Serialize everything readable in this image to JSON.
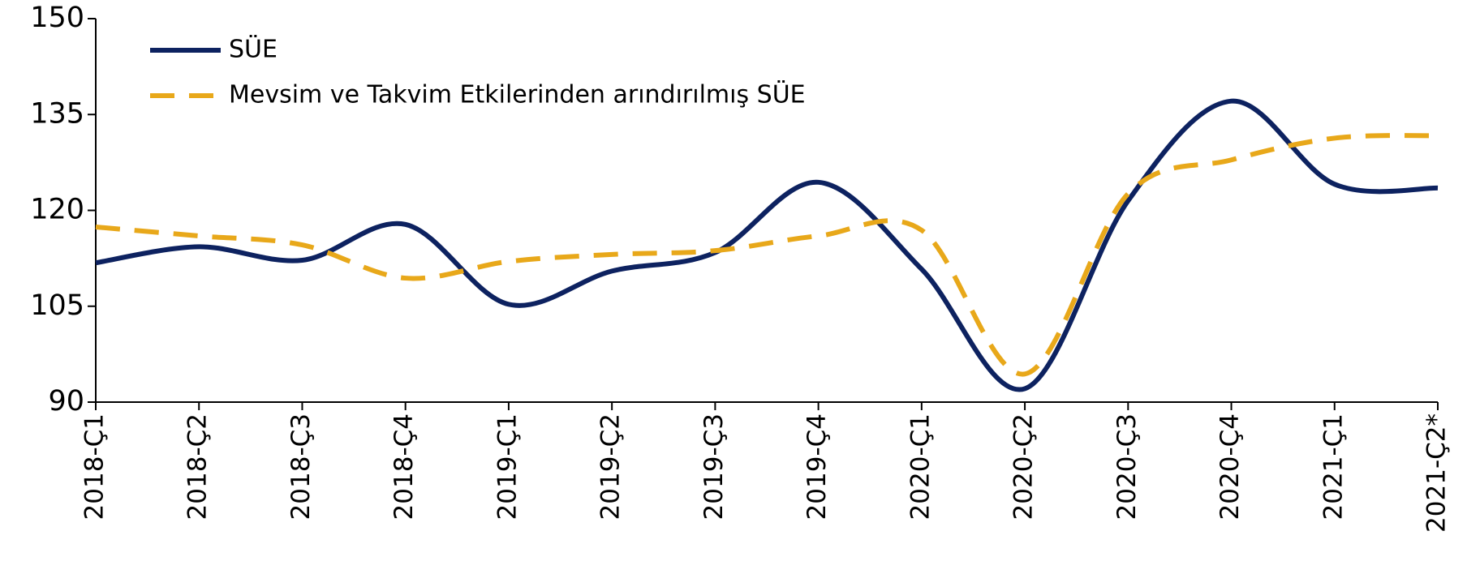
{
  "chart_data": {
    "type": "line",
    "categories": [
      "2018-Ç1",
      "2018-Ç2",
      "2018-Ç3",
      "2018-Ç4",
      "2019-Ç1",
      "2019-Ç2",
      "2019-Ç3",
      "2019-Ç4",
      "2020-Ç1",
      "2020-Ç2",
      "2020-Ç3",
      "2020-Ç4",
      "2021-Ç1",
      "2021-Ç2*"
    ],
    "series": [
      {
        "name": "SÜE",
        "color": "#0d2260",
        "dash": "solid",
        "values": [
          111.8,
          114.3,
          112.2,
          117.8,
          105.3,
          110.5,
          113.4,
          124.4,
          110.8,
          92.1,
          121.5,
          137.1,
          124.1,
          123.5
        ]
      },
      {
        "name": "Mevsim ve Takvim Etkilerinden arındırılmış SÜE",
        "color": "#e8a81a",
        "dash": "dashed",
        "values": [
          117.4,
          116.0,
          114.6,
          109.4,
          112.0,
          113.1,
          113.7,
          116.0,
          116.9,
          94.4,
          122.6,
          127.9,
          131.3,
          131.7
        ]
      }
    ],
    "ylim": [
      90,
      150
    ],
    "yticks": [
      90,
      105,
      120,
      135,
      150
    ],
    "legend": "upper left",
    "grid": false
  }
}
